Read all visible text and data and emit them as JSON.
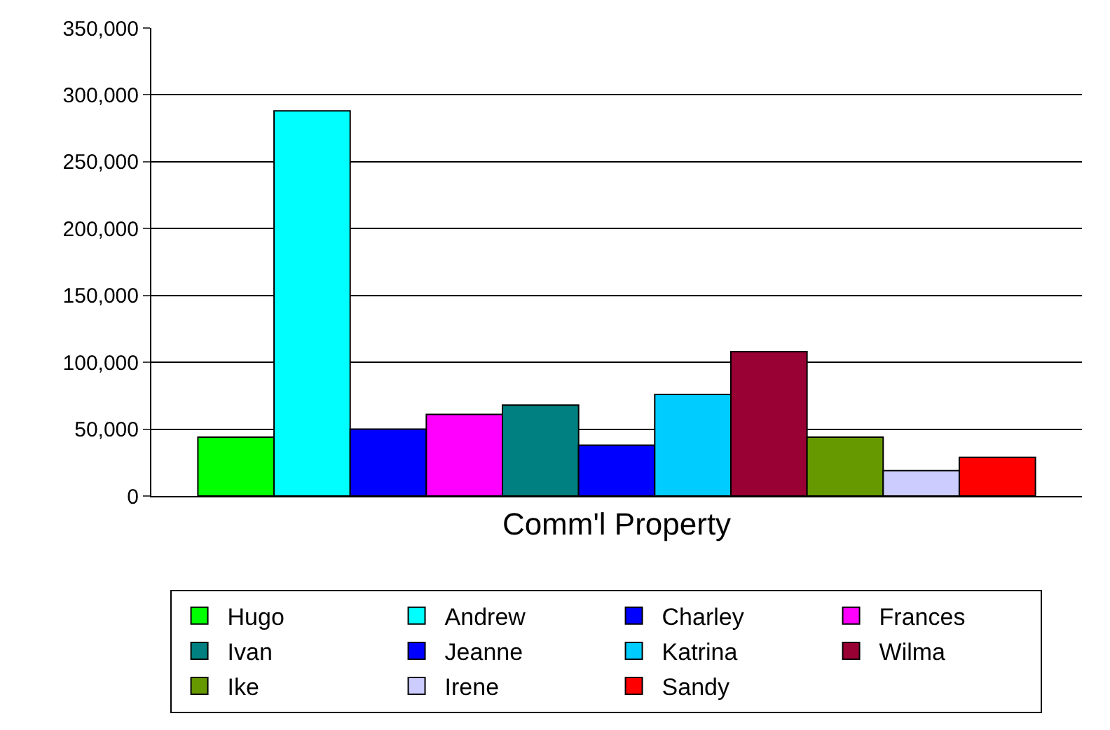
{
  "chart_data": {
    "type": "bar",
    "categories": [
      "Comm'l Property"
    ],
    "series": [
      {
        "name": "Hugo",
        "color": "#00ff00",
        "values": [
          44000
        ]
      },
      {
        "name": "Andrew",
        "color": "#00ffff",
        "values": [
          288000
        ]
      },
      {
        "name": "Charley",
        "color": "#0000ff",
        "values": [
          50000
        ]
      },
      {
        "name": "Frances",
        "color": "#ff00ff",
        "values": [
          61000
        ]
      },
      {
        "name": "Ivan",
        "color": "#008080",
        "values": [
          68000
        ]
      },
      {
        "name": "Jeanne",
        "color": "#0000ff",
        "values": [
          38000
        ]
      },
      {
        "name": "Katrina",
        "color": "#00ccff",
        "values": [
          76000
        ]
      },
      {
        "name": "Wilma",
        "color": "#990033",
        "values": [
          108000
        ]
      },
      {
        "name": "Ike",
        "color": "#669900",
        "values": [
          44000
        ]
      },
      {
        "name": "Irene",
        "color": "#ccccff",
        "values": [
          19000
        ]
      },
      {
        "name": "Sandy",
        "color": "#ff0000",
        "values": [
          29000
        ]
      }
    ],
    "ylim": [
      0,
      350000
    ],
    "yticks": [
      {
        "value": 0,
        "label": "0"
      },
      {
        "value": 50000,
        "label": "50,000"
      },
      {
        "value": 100000,
        "label": "100,000"
      },
      {
        "value": 150000,
        "label": "150,000"
      },
      {
        "value": 200000,
        "label": "200,000"
      },
      {
        "value": 250000,
        "label": "250,000"
      },
      {
        "value": 300000,
        "label": "300,000"
      },
      {
        "value": 350000,
        "label": "350,000"
      }
    ],
    "grid": "y",
    "legend": "bottom"
  }
}
